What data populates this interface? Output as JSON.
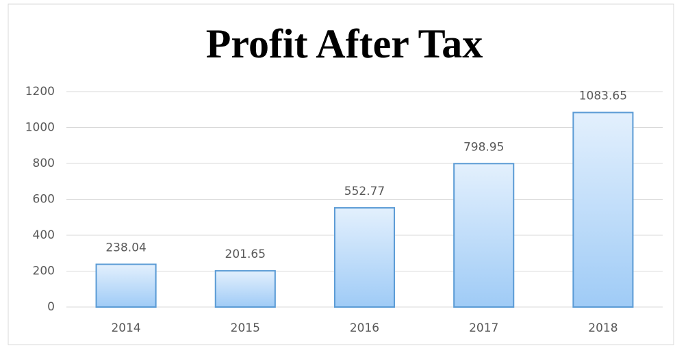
{
  "chart_data": {
    "type": "bar",
    "title": "Profit After Tax",
    "categories": [
      "2014",
      "2015",
      "2016",
      "2017",
      "2018"
    ],
    "values": [
      238.04,
      201.65,
      552.77,
      798.95,
      1083.65
    ],
    "color": "#5b9bd5",
    "ylim": [
      0,
      1200
    ],
    "yticks": [
      0,
      200,
      400,
      600,
      800,
      1000,
      1200
    ],
    "grid": true
  }
}
